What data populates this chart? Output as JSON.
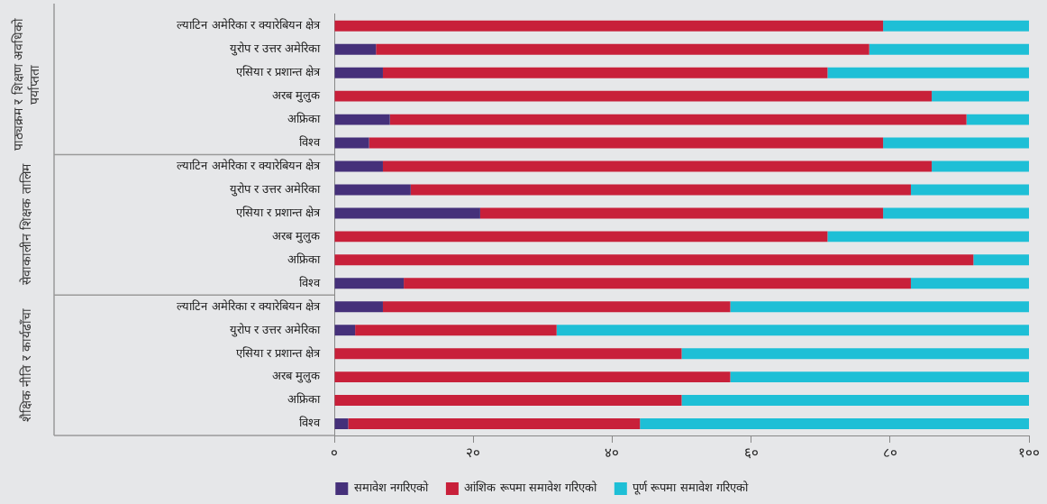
{
  "chart_data": {
    "type": "bar",
    "orientation": "horizontal",
    "stacked": true,
    "annotations": [
      "पाठ्यक्रम र शिक्षण अवधिको पर्याप्तता",
      "सेवाकालीन शिक्षक तालिम",
      "शैक्षिक नीति र कार्यढाँचा"
    ],
    "categories": [
      "ल्याटिन अमेरिका र क्यारेबियन क्षेत्र",
      "युरोप र उत्तर अमेरिका",
      "एसिया र प्रशान्त क्षेत्र",
      "अरब मुलुक",
      "अफ्रिका",
      "विश्व",
      "ल्याटिन अमेरिका र क्यारेबियन क्षेत्र",
      "युरोप र उत्तर अमेरिका",
      "एसिया र प्रशान्त क्षेत्र",
      "अरब मुलुक",
      "अफ्रिका",
      "विश्व",
      "ल्याटिन अमेरिका र क्यारेबियन क्षेत्र",
      "युरोप र उत्तर अमेरिका",
      "एसिया र प्रशान्त क्षेत्र",
      "अरब मुलुक",
      "अफ्रिका",
      "विश्व"
    ],
    "series": [
      {
        "name": "समावेश नगरिएको",
        "color": "#45307a",
        "values": [
          0,
          6,
          7,
          0,
          8,
          5,
          7,
          11,
          21,
          0,
          0,
          10,
          7,
          3,
          0,
          0,
          0,
          2
        ]
      },
      {
        "name": "आंशिक रूपमा समावेश गरिएको",
        "color": "#c8203a",
        "values": [
          79,
          71,
          64,
          86,
          83,
          74,
          79,
          72,
          58,
          71,
          92,
          73,
          50,
          29,
          50,
          57,
          50,
          42
        ]
      },
      {
        "name": "पूर्ण रूपमा समावेश गरिएको",
        "color": "#1ebfd6",
        "values": [
          21,
          23,
          29,
          14,
          9,
          21,
          14,
          17,
          21,
          29,
          8,
          17,
          43,
          68,
          50,
          43,
          50,
          56
        ]
      }
    ],
    "xlim": [
      0,
      100
    ],
    "xticks": [
      {
        "value": 0,
        "label": "०"
      },
      {
        "value": 20,
        "label": "२०"
      },
      {
        "value": 40,
        "label": "४०"
      },
      {
        "value": 60,
        "label": "६०"
      },
      {
        "value": 80,
        "label": "८०"
      },
      {
        "value": 100,
        "label": "१००"
      }
    ],
    "legend": "bottom"
  }
}
